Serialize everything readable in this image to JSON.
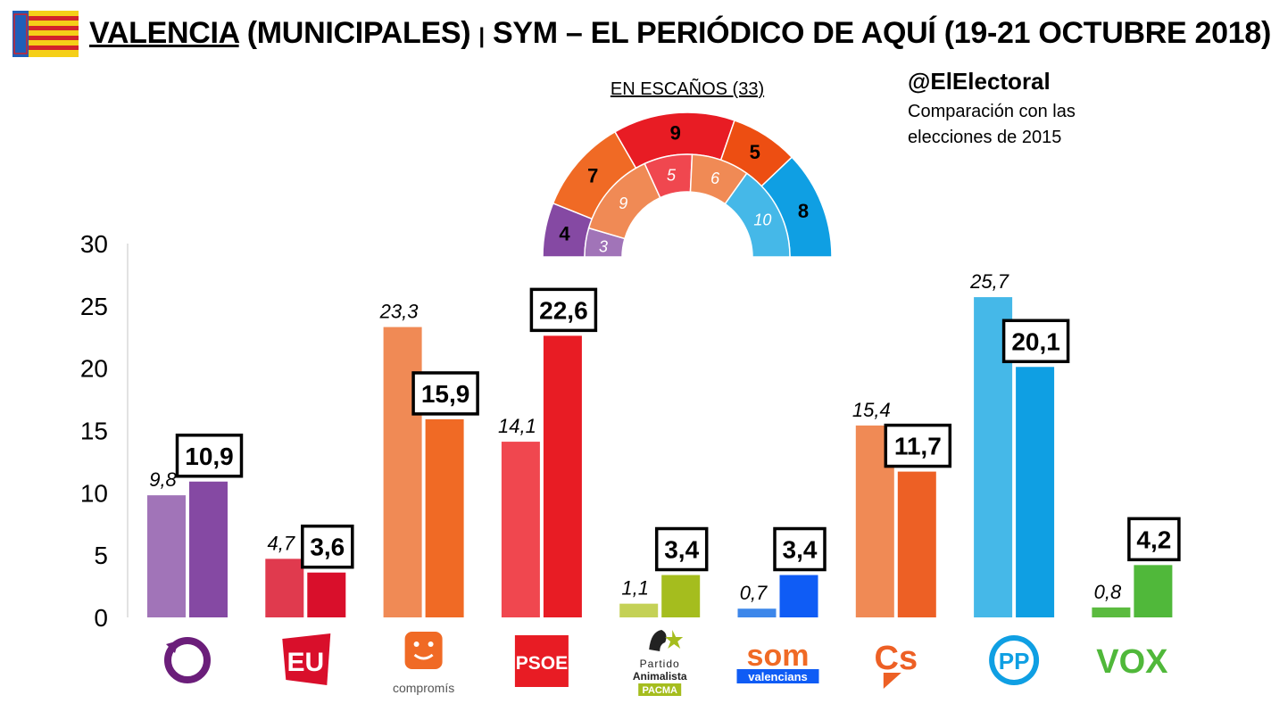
{
  "header": {
    "city": "VALENCIA",
    "subtitle": "(MUNICIPALES)",
    "separator": "|",
    "source": "SYM – EL PERIÓDICO DE AQUÍ (19-21 OCTUBRE 2018)"
  },
  "handle": "@ElElectoral",
  "note_line1": "Comparación con las",
  "note_line2": "elecciones de 2015",
  "colors": {
    "podemos": [
      "#a174b8",
      "#8549a3"
    ],
    "eu": [
      "#e03a4e",
      "#d90f2b"
    ],
    "compromis": [
      "#f08a55",
      "#f06a25"
    ],
    "psoe": [
      "#f0474f",
      "#e81c24"
    ],
    "pacma": [
      "#c4d156",
      "#a5bd1e"
    ],
    "som": [
      "#3d87ea",
      "#0f5cf5"
    ],
    "cs": [
      "#f08a55",
      "#ed6025"
    ],
    "pp": [
      "#45b8e8",
      "#0f9fe3"
    ],
    "vox": [
      "#5bbb3f",
      "#50b83a"
    ]
  },
  "logos": {
    "compromis": "compromís",
    "psoe": "PSOE",
    "pacma_line1": "Partido",
    "pacma_line2": "Animalista",
    "pacma_line3": "PACMA",
    "som_top": "som",
    "som_bottom": "valencians",
    "cs": "Cs",
    "pp": "PP",
    "vox": "VOX",
    "eu": "EU"
  },
  "chart_data": [
    {
      "type": "bar",
      "yticks": [
        "30",
        "25",
        "20",
        "15",
        "10",
        "5",
        "0"
      ],
      "ylim": [
        0,
        30
      ],
      "categories": [
        "Podemos",
        "EU",
        "Compromís",
        "PSOE",
        "PACMA",
        "Som Valencians",
        "Cs",
        "PP",
        "VOX"
      ],
      "series": [
        {
          "values": [
            9.8,
            4.7,
            23.3,
            14.1,
            1.1,
            0.7,
            15.4,
            25.7,
            0.8
          ],
          "labels": [
            "9,8",
            "4,7",
            "23,3",
            "14,1",
            "1,1",
            "0,7",
            "15,4",
            "25,7",
            "0,8"
          ]
        },
        {
          "values": [
            10.9,
            3.6,
            15.9,
            22.6,
            3.4,
            3.4,
            11.7,
            20.1,
            4.2
          ],
          "labels": [
            "10,9",
            "3,6",
            "15,9",
            "22,6",
            "3,4",
            "3,4",
            "11,7",
            "20,1",
            "4,2"
          ]
        }
      ]
    },
    {
      "type": "hemicycle",
      "title": "EN ESCAÑOS (33)",
      "outer": [
        {
          "party": "Podemos",
          "seats": 4,
          "color": "#8549a3"
        },
        {
          "party": "Compromís",
          "seats": 7,
          "color": "#f06a25"
        },
        {
          "party": "PSOE",
          "seats": 9,
          "color": "#e81c24"
        },
        {
          "party": "Cs",
          "seats": 5,
          "color": "#ed4e12"
        },
        {
          "party": "PP",
          "seats": 8,
          "color": "#0f9fe3"
        }
      ],
      "inner": [
        {
          "party": "Podemos",
          "seats": 3,
          "color": "#a174b8"
        },
        {
          "party": "Compromís",
          "seats": 9,
          "color": "#f08a55"
        },
        {
          "party": "PSOE",
          "seats": 5,
          "color": "#f0474f"
        },
        {
          "party": "Cs",
          "seats": 6,
          "color": "#f08a55"
        },
        {
          "party": "PP",
          "seats": 10,
          "color": "#45b8e8"
        }
      ]
    }
  ]
}
